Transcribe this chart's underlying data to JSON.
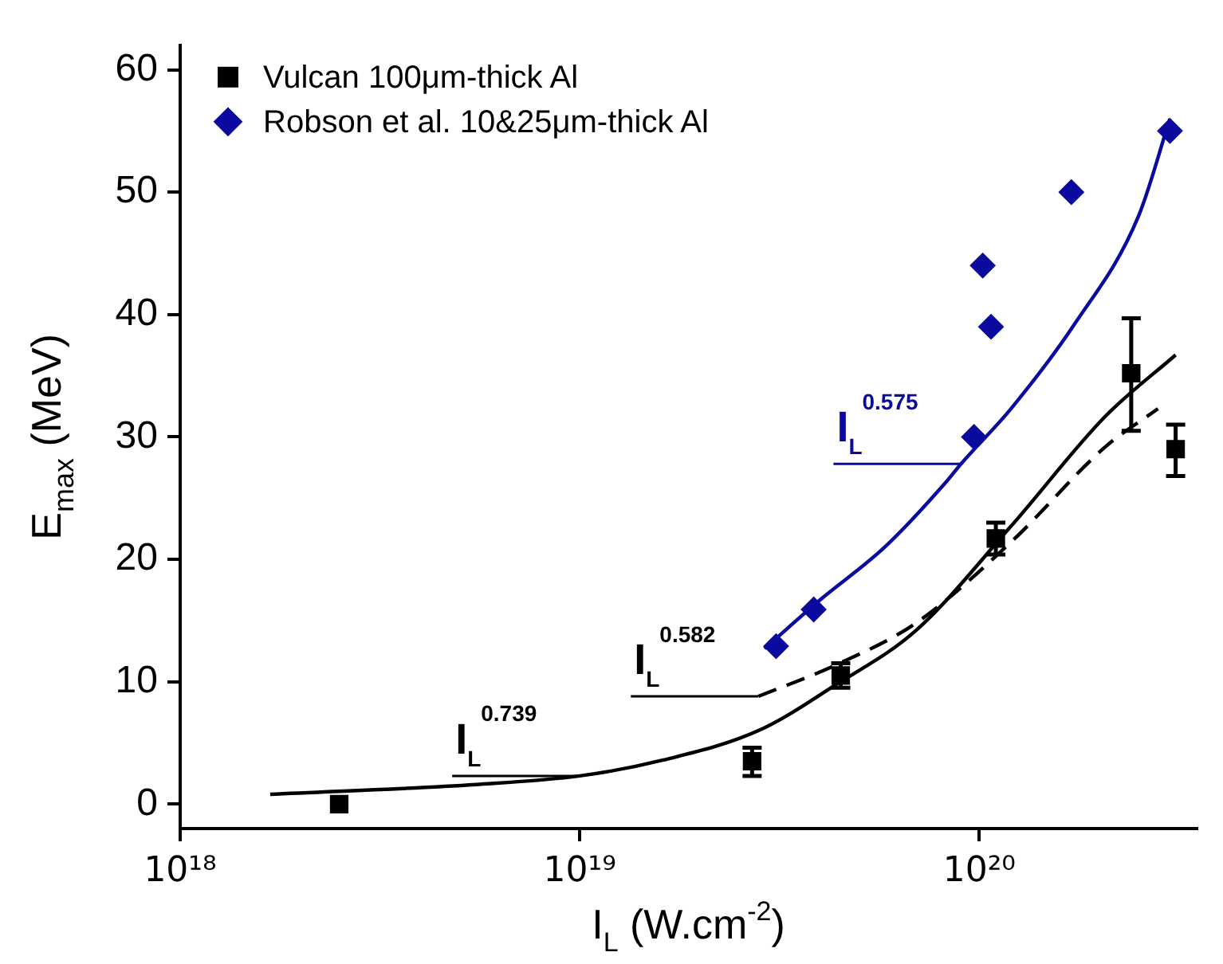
{
  "chart_data": {
    "type": "scatter",
    "xlabel": "I$_{L}$ (W.cm$^{-2}$)",
    "ylabel": "E$_{max}$ (MeV)",
    "log": "x",
    "grid": false,
    "legend": "top left",
    "xlim": [
      1e+18,
      3.5e+20
    ],
    "xticks": [
      {
        "value": 1e+18,
        "label": "10¹⁸"
      },
      {
        "value": 1e+19,
        "label": "10¹⁹"
      },
      {
        "value": 1e+20,
        "label": "10²⁰"
      }
    ],
    "ylim": [
      -2,
      62
    ],
    "yticks": [
      0,
      10,
      20,
      30,
      40,
      50,
      60
    ],
    "series": [
      {
        "name": "Vulcan 100μm-thick Al",
        "marker": "square",
        "color": "#000000",
        "x": [
          2.5e+18,
          2.7e+19,
          4.5e+19,
          1.1e+20,
          2.4e+20,
          3.1e+20
        ],
        "values": [
          0,
          3.5,
          10.5,
          21.7,
          35.2,
          29
        ],
        "errors": [
          null,
          [
            2.3,
            4.6
          ],
          [
            9.5,
            11.5
          ],
          [
            20.4,
            23
          ],
          [
            30.5,
            39.7
          ],
          [
            26.8,
            31
          ]
        ]
      },
      {
        "name": "Robson et al. 10&25μm-thick Al",
        "marker": "diamond",
        "color": "#0a0a9e",
        "x": [
          3.1e+19,
          3.85e+19,
          9.7e+19,
          1.02e+20,
          1.07e+20,
          1.7e+20,
          3e+20
        ],
        "values": [
          12.9,
          15.9,
          30,
          44,
          39,
          50,
          55
        ]
      },
      {
        "type": "line",
        "marker": "none",
        "line_style": "solid",
        "color": "#000000",
        "x": [
          1.68e+18,
          5.5e+18,
          1e+19,
          1.62e+19,
          2.8e+19,
          4.4e+19,
          6.95e+19,
          1.2e+20,
          2.07e+20,
          3.1e+20
        ],
        "values": [
          0.8,
          1.6,
          2.3,
          3.6,
          6,
          9.8,
          14.2,
          22.7,
          31.7,
          36.7
        ]
      },
      {
        "type": "line",
        "marker": "none",
        "line_style": "dashed",
        "color": "#000000",
        "x": [
          2.8e+19,
          4.4e+19,
          6.95e+19,
          1.2e+20,
          2.07e+20,
          2.8e+20
        ],
        "values": [
          8.8,
          11.4,
          14.8,
          21.4,
          29.2,
          32.3
        ]
      },
      {
        "type": "line",
        "marker": "none",
        "line_style": "solid",
        "color": "#0a0a9e",
        "x": [
          2.9e+19,
          4e+19,
          5.8e+19,
          8.3e+19,
          9e+19,
          1.2e+20,
          1.73e+20,
          2.5e+20,
          3e+20
        ],
        "values": [
          12.7,
          16.7,
          21,
          26.4,
          27.8,
          32.3,
          39.2,
          48,
          56
        ]
      }
    ],
    "annotations": [
      {
        "text": "I$_{L}$$^{0.739}$",
        "x": 1e+19,
        "y": 2.3
      },
      {
        "text": "I$_{L}$$^{0.582}$",
        "x": 2.8e+19,
        "y": 8.8
      },
      {
        "text": "I$_{L}$$^{0.575}$",
        "x": 9e+19,
        "y": 27.8
      }
    ]
  }
}
